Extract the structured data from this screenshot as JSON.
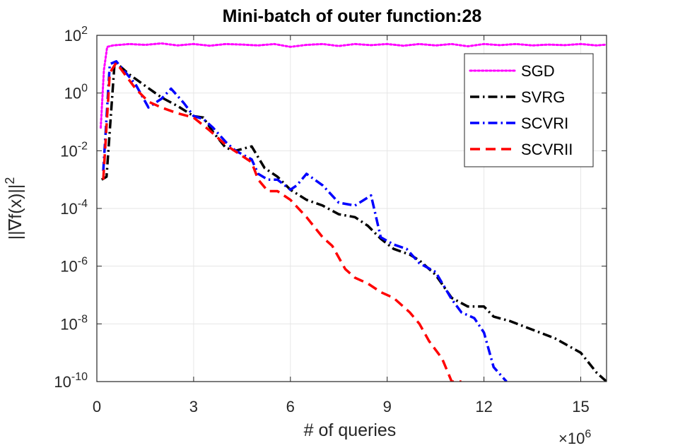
{
  "chart_data": {
    "type": "line",
    "title": "Mini-batch of outer function:28",
    "xlabel": "# of queries",
    "ylabel": "||∇f(x)||",
    "ylabel_superscript": "2",
    "x_scale": "linear",
    "x_multiplier": {
      "base": "×10",
      "exponent": "6"
    },
    "xlim": [
      0,
      15.8
    ],
    "x_ticks": [
      0,
      3,
      6,
      9,
      12,
      15
    ],
    "y_scale": "log",
    "ylim_log10": [
      -10,
      2
    ],
    "y_ticks_exponents": [
      "-10",
      "-8",
      "-6",
      "-4",
      "-2",
      "0",
      "2"
    ],
    "y_tick_base": "10",
    "grid": true,
    "legend_position": "top-right",
    "series": [
      {
        "name": "SGD",
        "color": "#ff00ff",
        "style": "dotted",
        "x": [
          0.12,
          0.22,
          0.32,
          0.5,
          1,
          1.5,
          2,
          2.5,
          3,
          3.5,
          4,
          4.5,
          5,
          5.5,
          6,
          6.5,
          7,
          7.5,
          8,
          8.5,
          9,
          9.5,
          10,
          10.5,
          11,
          11.5,
          12,
          12.5,
          13,
          13.5,
          14,
          14.5,
          15,
          15.5,
          15.8
        ],
        "log10_y": [
          -1.2,
          0.8,
          1.6,
          1.65,
          1.7,
          1.67,
          1.72,
          1.65,
          1.7,
          1.64,
          1.7,
          1.68,
          1.65,
          1.7,
          1.6,
          1.67,
          1.7,
          1.63,
          1.7,
          1.66,
          1.7,
          1.64,
          1.7,
          1.65,
          1.7,
          1.62,
          1.7,
          1.66,
          1.7,
          1.65,
          1.68,
          1.66,
          1.7,
          1.65,
          1.68
        ]
      },
      {
        "name": "SVRG",
        "color": "#000000",
        "style": "dashdot",
        "x": [
          0.15,
          0.3,
          0.55,
          0.7,
          1,
          1.5,
          2,
          2.5,
          3,
          3.3,
          3.6,
          4,
          4.3,
          4.8,
          5.2,
          5.6,
          6,
          6.5,
          7,
          7.5,
          8,
          8.4,
          8.8,
          9.2,
          9.7,
          10,
          10.5,
          11,
          11.5,
          12,
          12.3,
          12.8,
          13.5,
          14.2,
          15,
          15.5,
          15.8
        ],
        "log10_y": [
          -3.0,
          -2.9,
          1.05,
          0.95,
          0.65,
          0.25,
          -0.15,
          -0.45,
          -0.8,
          -0.85,
          -1.35,
          -1.9,
          -2.0,
          -1.85,
          -2.6,
          -2.9,
          -3.35,
          -3.7,
          -3.9,
          -4.2,
          -4.3,
          -4.6,
          -5.05,
          -5.4,
          -5.6,
          -5.8,
          -6.3,
          -7.1,
          -7.4,
          -7.4,
          -7.75,
          -7.9,
          -8.2,
          -8.5,
          -9.0,
          -9.7,
          -10.0
        ]
      },
      {
        "name": "SCVRI",
        "color": "#0000ff",
        "style": "dashdot",
        "x": [
          0.2,
          0.4,
          0.6,
          0.9,
          1.2,
          1.6,
          2,
          2.3,
          2.7,
          3,
          3.3,
          3.6,
          4,
          4.3,
          4.8,
          5,
          5.3,
          5.6,
          6,
          6.2,
          6.5,
          7,
          7.5,
          8,
          8.5,
          8.8,
          9.2,
          9.6,
          10,
          10.5,
          11,
          11.3,
          11.7,
          12,
          12.3,
          12.7
        ],
        "log10_y": [
          -2.7,
          1.0,
          1.1,
          0.7,
          0.3,
          -0.5,
          -0.2,
          0.15,
          -0.35,
          -0.8,
          -0.9,
          -1.2,
          -1.7,
          -2.0,
          -2.3,
          -2.8,
          -3.0,
          -3.0,
          -3.35,
          -3.2,
          -2.8,
          -3.2,
          -3.8,
          -3.9,
          -3.55,
          -5.0,
          -5.25,
          -5.4,
          -5.9,
          -6.2,
          -7.15,
          -7.6,
          -7.8,
          -8.3,
          -9.5,
          -10.0
        ]
      },
      {
        "name": "SCVRII",
        "color": "#ff0000",
        "style": "dashed",
        "x": [
          0.2,
          0.4,
          0.6,
          0.9,
          1.2,
          1.6,
          2,
          2.5,
          3,
          3.5,
          4,
          4.4,
          4.8,
          5.0,
          5.3,
          5.6,
          6,
          6.5,
          7,
          7.3,
          7.7,
          8,
          8.4,
          8.8,
          9.2,
          9.7,
          10,
          10.3,
          10.7,
          11,
          11.3
        ],
        "log10_y": [
          -3.0,
          0.7,
          1.05,
          0.6,
          0.15,
          -0.3,
          -0.5,
          -0.7,
          -0.85,
          -1.3,
          -1.8,
          -2.1,
          -2.4,
          -3.0,
          -3.4,
          -3.4,
          -3.7,
          -4.3,
          -5.0,
          -5.3,
          -6.1,
          -6.4,
          -6.6,
          -6.9,
          -7.1,
          -7.6,
          -8.0,
          -8.6,
          -9.2,
          -10.0,
          -10.0
        ]
      }
    ]
  }
}
